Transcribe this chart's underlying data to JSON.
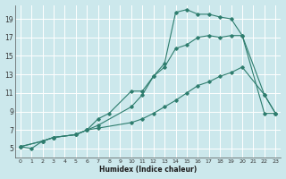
{
  "xlabel": "Humidex (Indice chaleur)",
  "ylabel": "",
  "background_color": "#cce8ec",
  "grid_color": "#ffffff",
  "line_color": "#2e7d6e",
  "xlim": [
    -0.5,
    23.5
  ],
  "ylim": [
    4.0,
    20.5
  ],
  "x_ticks": [
    0,
    1,
    2,
    3,
    4,
    5,
    6,
    7,
    8,
    9,
    10,
    11,
    12,
    13,
    14,
    15,
    16,
    17,
    18,
    19,
    20,
    21,
    22,
    23
  ],
  "y_ticks": [
    5,
    7,
    9,
    11,
    13,
    15,
    17,
    19
  ],
  "series": [
    {
      "x": [
        0,
        1,
        2,
        3,
        5,
        6,
        7,
        8,
        10,
        11,
        12,
        13,
        14,
        15,
        16,
        17,
        18,
        19,
        20,
        22,
        23
      ],
      "y": [
        5.2,
        5.0,
        5.8,
        6.2,
        6.5,
        7.0,
        8.2,
        8.8,
        11.2,
        11.2,
        12.8,
        14.2,
        19.7,
        20.0,
        19.5,
        19.5,
        19.2,
        19.0,
        17.2,
        8.8,
        8.8
      ]
    },
    {
      "x": [
        0,
        2,
        3,
        5,
        6,
        7,
        10,
        11,
        12,
        13,
        14,
        15,
        16,
        17,
        18,
        19,
        20,
        22,
        23
      ],
      "y": [
        5.2,
        5.8,
        6.2,
        6.5,
        7.0,
        7.5,
        9.5,
        10.8,
        12.8,
        13.8,
        15.8,
        16.2,
        17.0,
        17.2,
        17.0,
        17.2,
        17.2,
        10.8,
        8.8
      ]
    },
    {
      "x": [
        0,
        2,
        3,
        5,
        6,
        7,
        10,
        11,
        12,
        13,
        14,
        15,
        16,
        17,
        18,
        19,
        20,
        22,
        23
      ],
      "y": [
        5.2,
        5.8,
        6.2,
        6.5,
        7.0,
        7.2,
        7.8,
        8.2,
        8.8,
        9.5,
        10.2,
        11.0,
        11.8,
        12.2,
        12.8,
        13.2,
        13.8,
        10.8,
        8.8
      ]
    }
  ]
}
